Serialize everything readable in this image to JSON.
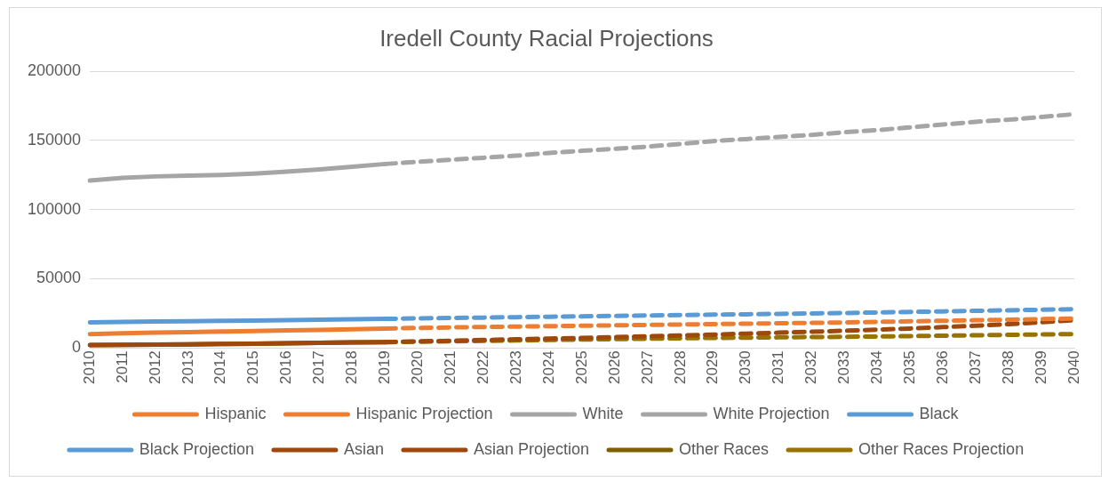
{
  "chart_data": {
    "type": "line",
    "title": "Iredell County Racial Projections",
    "categories": [
      "2010",
      "2011",
      "2012",
      "2013",
      "2014",
      "2015",
      "2016",
      "2017",
      "2018",
      "2019",
      "2020",
      "2021",
      "2022",
      "2023",
      "2024",
      "2025",
      "2026",
      "2027",
      "2028",
      "2029",
      "2030",
      "2031",
      "2032",
      "2033",
      "2034",
      "2035",
      "2036",
      "2037",
      "2038",
      "2039",
      "2040"
    ],
    "ylim": [
      0,
      200000
    ],
    "yticks": [
      0,
      50000,
      100000,
      150000,
      200000
    ],
    "grid": "y",
    "legend": "bottom",
    "marker": "none",
    "series": [
      {
        "name": "Hispanic",
        "color": "#ed7d31",
        "line_style": "solid",
        "values": [
          10000,
          10500,
          11000,
          11400,
          11800,
          12200,
          12600,
          13000,
          13500,
          14000,
          null,
          null,
          null,
          null,
          null,
          null,
          null,
          null,
          null,
          null,
          null,
          null,
          null,
          null,
          null,
          null,
          null,
          null,
          null,
          null,
          null
        ]
      },
      {
        "name": "Hispanic Projection",
        "color": "#ed7d31",
        "line_style": "dashed",
        "values": [
          null,
          null,
          null,
          null,
          null,
          null,
          null,
          null,
          null,
          14000,
          14400,
          14800,
          15100,
          15400,
          15700,
          16000,
          16300,
          16600,
          16900,
          17200,
          17500,
          17800,
          18100,
          18400,
          18800,
          19200,
          19600,
          20000,
          20400,
          20800,
          21200
        ]
      },
      {
        "name": "White",
        "color": "#a5a5a5",
        "line_style": "solid",
        "values": [
          121000,
          123000,
          124000,
          124500,
          125000,
          126000,
          127500,
          129000,
          131000,
          133000,
          null,
          null,
          null,
          null,
          null,
          null,
          null,
          null,
          null,
          null,
          null,
          null,
          null,
          null,
          null,
          null,
          null,
          null,
          null,
          null,
          null
        ]
      },
      {
        "name": "White Projection",
        "color": "#a5a5a5",
        "line_style": "dashed",
        "values": [
          null,
          null,
          null,
          null,
          null,
          null,
          null,
          null,
          null,
          133000,
          134500,
          136000,
          137500,
          139000,
          141000,
          142500,
          144000,
          145500,
          147500,
          149500,
          151000,
          152500,
          154000,
          156000,
          157500,
          159500,
          161500,
          163500,
          165000,
          167000,
          169000
        ]
      },
      {
        "name": "Black",
        "color": "#5b9bd5",
        "line_style": "solid",
        "values": [
          18500,
          18800,
          19100,
          19300,
          19500,
          19800,
          20100,
          20400,
          20700,
          21000,
          null,
          null,
          null,
          null,
          null,
          null,
          null,
          null,
          null,
          null,
          null,
          null,
          null,
          null,
          null,
          null,
          null,
          null,
          null,
          null,
          null
        ]
      },
      {
        "name": "Black Projection",
        "color": "#5b9bd5",
        "line_style": "dashed",
        "values": [
          null,
          null,
          null,
          null,
          null,
          null,
          null,
          null,
          null,
          21000,
          21300,
          21600,
          21900,
          22200,
          22500,
          22800,
          23100,
          23400,
          23700,
          24000,
          24300,
          24600,
          24900,
          25200,
          25600,
          26000,
          26400,
          26800,
          27200,
          27600,
          28000
        ]
      },
      {
        "name": "Asian",
        "color": "#9e480e",
        "line_style": "solid",
        "values": [
          2000,
          2200,
          2400,
          2600,
          2800,
          3000,
          3300,
          3600,
          3900,
          4200,
          null,
          null,
          null,
          null,
          null,
          null,
          null,
          null,
          null,
          null,
          null,
          null,
          null,
          null,
          null,
          null,
          null,
          null,
          null,
          null,
          null
        ]
      },
      {
        "name": "Asian Projection",
        "color": "#9e480e",
        "line_style": "dashed",
        "values": [
          null,
          null,
          null,
          null,
          null,
          null,
          null,
          null,
          null,
          4200,
          4700,
          5200,
          5700,
          6200,
          6700,
          7200,
          7800,
          8400,
          9000,
          9600,
          10300,
          11000,
          11700,
          12400,
          13200,
          14000,
          15000,
          16000,
          17200,
          18500,
          20000
        ]
      },
      {
        "name": "Other Races",
        "color": "#7f6000",
        "line_style": "solid",
        "values": [
          2000,
          2200,
          2400,
          2600,
          2800,
          3000,
          3300,
          3600,
          3900,
          4200,
          null,
          null,
          null,
          null,
          null,
          null,
          null,
          null,
          null,
          null,
          null,
          null,
          null,
          null,
          null,
          null,
          null,
          null,
          null,
          null,
          null
        ]
      },
      {
        "name": "Other Races Projection",
        "color": "#997300",
        "line_style": "dashed",
        "values": [
          null,
          null,
          null,
          null,
          null,
          null,
          null,
          null,
          null,
          4200,
          4500,
          4800,
          5100,
          5400,
          5700,
          6000,
          6300,
          6600,
          6900,
          7200,
          7400,
          7600,
          7800,
          8000,
          8200,
          8500,
          8800,
          9100,
          9400,
          9700,
          10000
        ]
      }
    ]
  }
}
